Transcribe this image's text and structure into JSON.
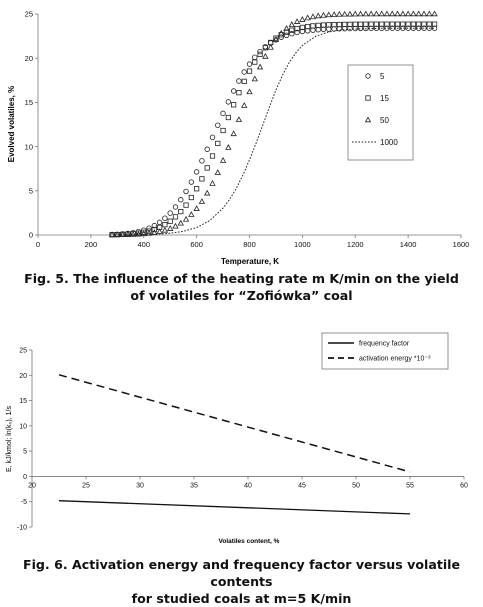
{
  "figure5": {
    "caption_line1": "Fig. 5. The influence of the heating rate m K/min on the yield",
    "caption_line2": "of volatiles for “Zofiówka” coal",
    "chart_data": {
      "type": "scatter",
      "title": "",
      "xlabel": "Temperature, K",
      "ylabel": "Evolved volatiles, %",
      "xlim": [
        0,
        1600
      ],
      "ylim": [
        0,
        25
      ],
      "x_ticks": [
        "0",
        "200",
        "400",
        "600",
        "800",
        "1000",
        "1200",
        "1400",
        "1600"
      ],
      "y_ticks": [
        "0",
        "5",
        "10",
        "15",
        "20",
        "25"
      ],
      "grid": false,
      "legend_position": "right",
      "series": [
        {
          "name": "5",
          "marker": "circle",
          "x": [
            280,
            300,
            320,
            340,
            360,
            380,
            400,
            420,
            440,
            460,
            480,
            500,
            520,
            540,
            560,
            580,
            600,
            620,
            640,
            660,
            680,
            700,
            720,
            740,
            760,
            780,
            800,
            820,
            840,
            860,
            880,
            900,
            920,
            940,
            960,
            980,
            1000,
            1020,
            1040,
            1060,
            1080,
            1100,
            1120,
            1140,
            1160,
            1180,
            1200,
            1220,
            1240,
            1260,
            1280,
            1300,
            1320,
            1340,
            1360,
            1380,
            1400,
            1420,
            1440,
            1460,
            1480,
            1500
          ],
          "y": [
            0.05,
            0.08,
            0.12,
            0.18,
            0.26,
            0.38,
            0.55,
            0.77,
            1.06,
            1.43,
            1.9,
            2.48,
            3.17,
            3.99,
            4.93,
            5.99,
            7.14,
            8.39,
            9.7,
            11.05,
            12.42,
            13.76,
            15.06,
            16.29,
            17.42,
            18.44,
            19.33,
            20.1,
            20.75,
            21.29,
            21.73,
            22.08,
            22.37,
            22.59,
            22.77,
            22.91,
            23.02,
            23.1,
            23.17,
            23.22,
            23.26,
            23.29,
            23.31,
            23.33,
            23.34,
            23.35,
            23.36,
            23.37,
            23.37,
            23.38,
            23.38,
            23.38,
            23.39,
            23.39,
            23.39,
            23.39,
            23.39,
            23.39,
            23.39,
            23.39,
            23.39,
            23.39
          ]
        },
        {
          "name": "15",
          "marker": "square",
          "x": [
            280,
            300,
            320,
            340,
            360,
            380,
            400,
            420,
            440,
            460,
            480,
            500,
            520,
            540,
            560,
            580,
            600,
            620,
            640,
            660,
            680,
            700,
            720,
            740,
            760,
            780,
            800,
            820,
            840,
            860,
            880,
            900,
            920,
            940,
            960,
            980,
            1000,
            1020,
            1040,
            1060,
            1080,
            1100,
            1120,
            1140,
            1160,
            1180,
            1200,
            1220,
            1240,
            1260,
            1280,
            1300,
            1320,
            1340,
            1360,
            1380,
            1400,
            1420,
            1440,
            1460,
            1480,
            1500
          ],
          "y": [
            0.03,
            0.04,
            0.07,
            0.1,
            0.14,
            0.21,
            0.31,
            0.44,
            0.62,
            0.86,
            1.17,
            1.56,
            2.05,
            2.65,
            3.38,
            4.24,
            5.23,
            6.35,
            7.59,
            8.94,
            10.36,
            11.82,
            13.29,
            14.73,
            16.1,
            17.38,
            18.54,
            19.56,
            20.44,
            21.18,
            21.78,
            22.27,
            22.65,
            22.95,
            23.17,
            23.35,
            23.48,
            23.58,
            23.65,
            23.71,
            23.75,
            23.77,
            23.8,
            23.81,
            23.82,
            23.83,
            23.84,
            23.84,
            23.84,
            23.85,
            23.85,
            23.85,
            23.85,
            23.85,
            23.85,
            23.85,
            23.85,
            23.85,
            23.85,
            23.85,
            23.85,
            23.85
          ]
        },
        {
          "name": "50",
          "marker": "triangle",
          "x": [
            280,
            300,
            320,
            340,
            360,
            380,
            400,
            420,
            440,
            460,
            480,
            500,
            520,
            540,
            560,
            580,
            600,
            620,
            640,
            660,
            680,
            700,
            720,
            740,
            760,
            780,
            800,
            820,
            840,
            860,
            880,
            900,
            920,
            940,
            960,
            980,
            1000,
            1020,
            1040,
            1060,
            1080,
            1100,
            1120,
            1140,
            1160,
            1180,
            1200,
            1220,
            1240,
            1260,
            1280,
            1300,
            1320,
            1340,
            1360,
            1380,
            1400,
            1420,
            1440,
            1460,
            1480,
            1500
          ],
          "y": [
            0.01,
            0.01,
            0.02,
            0.04,
            0.05,
            0.08,
            0.12,
            0.18,
            0.26,
            0.37,
            0.52,
            0.72,
            0.98,
            1.32,
            1.76,
            2.3,
            2.97,
            3.77,
            4.72,
            5.82,
            7.05,
            8.42,
            9.89,
            11.44,
            13.04,
            14.63,
            16.18,
            17.64,
            18.99,
            20.19,
            21.22,
            22.09,
            22.8,
            23.35,
            23.79,
            24.12,
            24.36,
            24.54,
            24.67,
            24.77,
            24.84,
            24.89,
            24.92,
            24.95,
            24.96,
            24.97,
            24.98,
            24.99,
            24.99,
            24.99,
            24.99,
            25.0,
            25.0,
            25.0,
            25.0,
            25.0,
            25.0,
            25.0,
            25.0,
            25.0,
            25.0,
            25.0
          ]
        },
        {
          "name": "1000",
          "marker": "dotted-line",
          "x": [
            300,
            350,
            400,
            450,
            500,
            550,
            600,
            650,
            700,
            725,
            750,
            775,
            800,
            825,
            850,
            875,
            900,
            925,
            950,
            975,
            1000,
            1050,
            1100,
            1150,
            1200,
            1300,
            1400,
            1500
          ],
          "y": [
            0.01,
            0.02,
            0.04,
            0.09,
            0.2,
            0.42,
            0.85,
            1.64,
            3.04,
            4.04,
            5.28,
            6.78,
            8.5,
            10.4,
            12.42,
            14.45,
            16.38,
            18.08,
            19.5,
            20.61,
            21.45,
            22.48,
            22.98,
            23.2,
            23.3,
            23.38,
            23.39,
            23.39
          ]
        }
      ]
    }
  },
  "figure6": {
    "caption_line1": "Fig. 6. Activation energy and frequency factor versus volatile contents",
    "caption_line2": "for studied coals at m=5 K/min",
    "chart_data": {
      "type": "line",
      "title": "",
      "xlabel": "Volatiles content, %",
      "ylabel": "E, kJ/kmol; ln(k₀), 1/s",
      "xlim": [
        20,
        60
      ],
      "ylim": [
        -10,
        25
      ],
      "x_ticks": [
        "20",
        "25",
        "30",
        "35",
        "40",
        "45",
        "50",
        "55",
        "60"
      ],
      "y_ticks": [
        "-10",
        "-5",
        "0",
        "5",
        "10",
        "15",
        "20",
        "25"
      ],
      "grid": false,
      "legend_position": "top-right",
      "series": [
        {
          "name": "frequency factor",
          "style": "solid",
          "x": [
            22.5,
            55
          ],
          "y": [
            -4.8,
            -7.4
          ]
        },
        {
          "name": "activation energy *10⁻³",
          "style": "dashed",
          "x": [
            22.5,
            55
          ],
          "y": [
            20.1,
            0.9
          ]
        }
      ]
    }
  }
}
